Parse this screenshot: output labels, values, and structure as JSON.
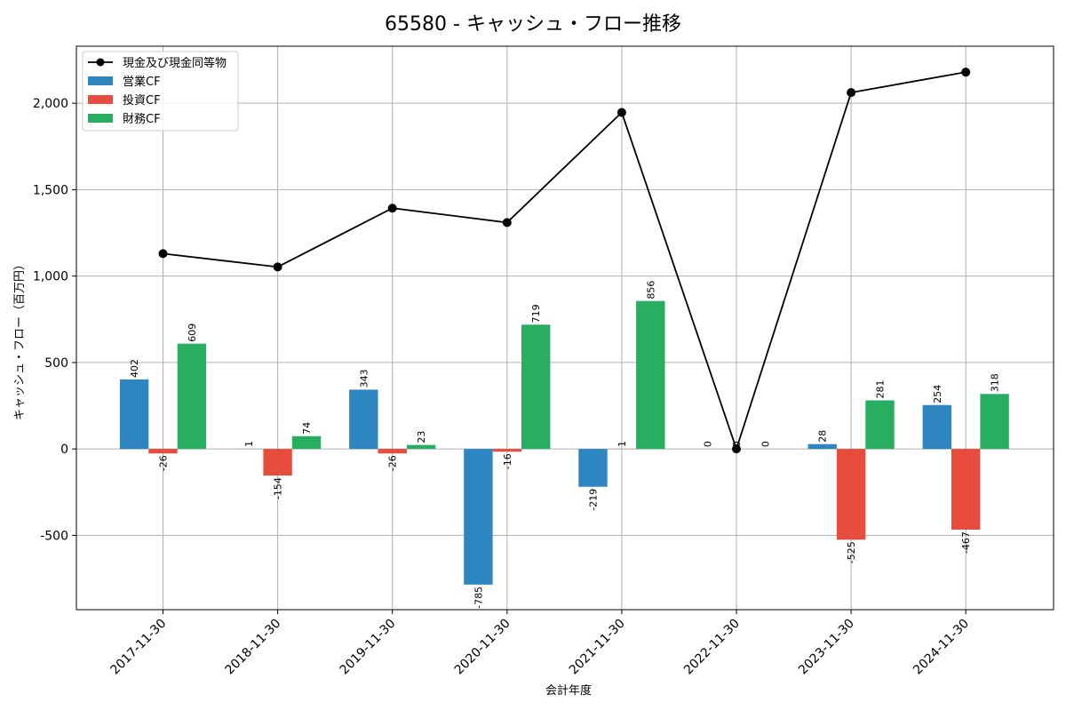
{
  "chart_data": {
    "type": "bar",
    "title": "65580 - キャッシュ・フロー推移",
    "xlabel": "会計年度",
    "ylabel": "キャッシュ・フロー（百万円）",
    "categories": [
      "2017-11-30",
      "2018-11-30",
      "2019-11-30",
      "2020-11-30",
      "2021-11-30",
      "2022-11-30",
      "2023-11-30",
      "2024-11-30"
    ],
    "ylim": [
      -930,
      2330
    ],
    "yticks": [
      -500,
      0,
      500,
      1000,
      1500,
      2000
    ],
    "ytick_labels": [
      "-500",
      "0",
      "500",
      "1,000",
      "1,500",
      "2,000"
    ],
    "grid": true,
    "legend_position": "top-left",
    "series": [
      {
        "name": "営業CF",
        "kind": "bar",
        "color": "#2e86c1",
        "values": [
          402,
          1,
          343,
          -785,
          -219,
          0,
          28,
          254
        ],
        "labels": [
          "402",
          "1",
          "343",
          "-785",
          "-219",
          "0",
          "28",
          "254"
        ]
      },
      {
        "name": "投資CF",
        "kind": "bar",
        "color": "#e74c3c",
        "values": [
          -26,
          -154,
          -26,
          -16,
          1,
          0,
          -525,
          -467
        ],
        "labels": [
          "-26",
          "-154",
          "-26",
          "-16",
          "1",
          "0",
          "-525",
          "-467"
        ]
      },
      {
        "name": "財務CF",
        "kind": "bar",
        "color": "#27ae60",
        "values": [
          609,
          74,
          23,
          719,
          856,
          0,
          281,
          318
        ],
        "labels": [
          "609",
          "74",
          "23",
          "719",
          "856",
          "0",
          "281",
          "318"
        ]
      },
      {
        "name": "現金及び現金同等物",
        "kind": "line",
        "color": "#000000",
        "values": [
          1130,
          1053,
          1393,
          1310,
          1947,
          0,
          2062,
          2180
        ]
      }
    ]
  }
}
